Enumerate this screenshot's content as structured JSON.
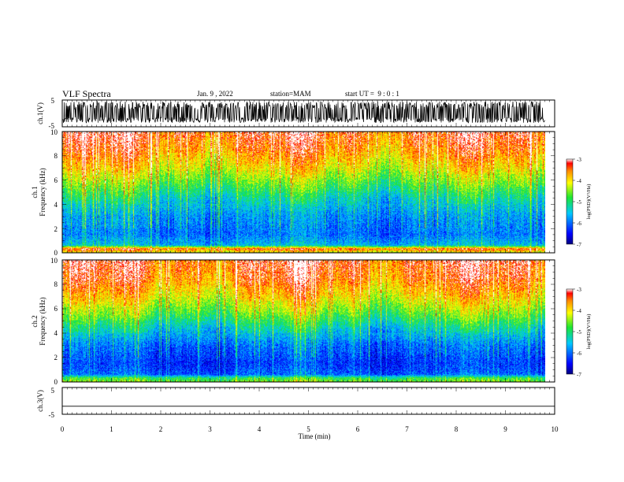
{
  "header": {
    "title": "VLF Spectra",
    "date": "Jan. 9 , 2022",
    "station": "station=MAM",
    "start_ut": "start UT =  9 : 0 : 1"
  },
  "chart_data": [
    {
      "type": "line",
      "panel": "waveform",
      "ylabel": "ch.1(V)",
      "ylim": [
        -5,
        5
      ],
      "y_ticks": [
        "5",
        "-5"
      ],
      "xlim": [
        0,
        10
      ],
      "signal": "dense broadband waveform, amplitude approx -3.5 to 4.5 V",
      "data_end_min": 9.8
    },
    {
      "type": "heatmap",
      "panel": "spectrogram",
      "ylabel": [
        "ch.1",
        "Frequency (kHz)"
      ],
      "ylim": [
        0,
        10
      ],
      "y_ticks": [
        "0",
        "2",
        "4",
        "6",
        "8",
        "10"
      ],
      "xlim": [
        0,
        10
      ],
      "data_end_min": 9.8,
      "colorbar": {
        "label": "log(PSD)(V²/Hz)",
        "range": [
          -7,
          -3
        ],
        "ticks": [
          "-3",
          "-4",
          "-5",
          "-6",
          "-7"
        ]
      },
      "profile_khz": [
        [
          0,
          -4.2
        ],
        [
          0.3,
          -3.4
        ],
        [
          0.6,
          -5.6
        ],
        [
          1.5,
          -6.0
        ],
        [
          3,
          -5.8
        ],
        [
          4.5,
          -5.3
        ],
        [
          5.5,
          -4.8
        ],
        [
          7,
          -4.1
        ],
        [
          8.5,
          -3.6
        ],
        [
          10,
          -3.3
        ]
      ]
    },
    {
      "type": "heatmap",
      "panel": "spectrogram",
      "ylabel": [
        "ch.2",
        "Frequency (kHz)"
      ],
      "ylim": [
        0,
        10
      ],
      "y_ticks": [
        "0",
        "2",
        "4",
        "6",
        "8",
        "10"
      ],
      "xlim": [
        0,
        10
      ],
      "data_end_min": 9.8,
      "colorbar": {
        "label": "log(PSD)(V²/Hz)",
        "range": [
          -7,
          -3
        ],
        "ticks": [
          "-3",
          "-4",
          "-5",
          "-6",
          "-7"
        ]
      },
      "profile_khz": [
        [
          0,
          -4.6
        ],
        [
          0.3,
          -4.9
        ],
        [
          0.6,
          -6.1
        ],
        [
          1.5,
          -6.3
        ],
        [
          3,
          -6.0
        ],
        [
          4.5,
          -5.3
        ],
        [
          5.5,
          -4.7
        ],
        [
          7,
          -4.0
        ],
        [
          8.5,
          -3.5
        ],
        [
          10,
          -3.3
        ]
      ]
    },
    {
      "type": "line",
      "panel": "waveform",
      "ylabel": "ch.3(V)",
      "ylim": [
        -5,
        5
      ],
      "y_ticks": [
        "5",
        "-5"
      ],
      "xlim": [
        0,
        10
      ],
      "constant_value": -2
    }
  ],
  "x_axis": {
    "label": "Time (min)",
    "range": [
      0,
      10
    ],
    "ticks": [
      "0",
      "1",
      "2",
      "3",
      "4",
      "5",
      "6",
      "7",
      "8",
      "9",
      "10"
    ]
  }
}
